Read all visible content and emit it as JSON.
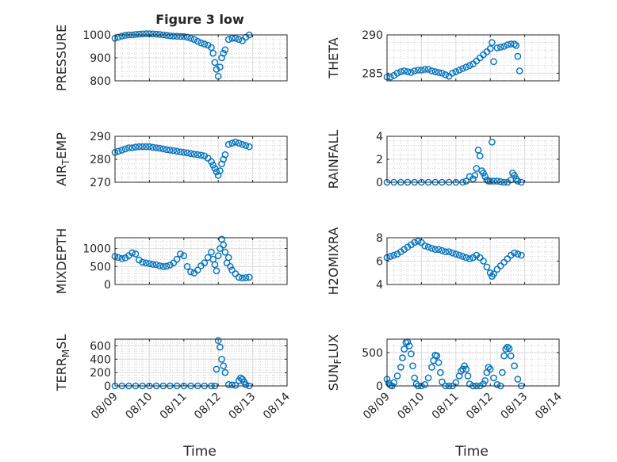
{
  "chart_data": {
    "type": "scatter",
    "title": "Figure 3 low",
    "xlabel": "Time",
    "x_tick_labels": [
      "08/09",
      "08/10",
      "08/11",
      "08/12",
      "08/13",
      "08/14"
    ],
    "x_range_days": [
      9,
      14
    ],
    "marker": "open-circle",
    "color": "#0072BD",
    "grid": "major and minor",
    "panels": [
      {
        "ylabel": "PRESSURE",
        "ylim": [
          800,
          1000
        ],
        "yticks": [
          800,
          900,
          1000
        ],
        "x": [
          9.0,
          9.1,
          9.2,
          9.3,
          9.4,
          9.5,
          9.6,
          9.7,
          9.8,
          9.9,
          10.0,
          10.1,
          10.2,
          10.3,
          10.4,
          10.5,
          10.6,
          10.7,
          10.8,
          10.9,
          11.0,
          11.1,
          11.2,
          11.3,
          11.4,
          11.5,
          11.6,
          11.7,
          11.8,
          11.85,
          11.9,
          11.95,
          12.0,
          12.05,
          12.1,
          12.15,
          12.2,
          12.3,
          12.4,
          12.5,
          12.6,
          12.7,
          12.8,
          12.9
        ],
        "y": [
          985,
          990,
          995,
          998,
          1000,
          1000,
          1002,
          1003,
          1004,
          1005,
          1005,
          1004,
          1003,
          1002,
          1000,
          998,
          996,
          995,
          994,
          993,
          993,
          990,
          985,
          980,
          972,
          965,
          960,
          955,
          945,
          920,
          880,
          850,
          820,
          860,
          900,
          920,
          935,
          980,
          985,
          985,
          980,
          975,
          990,
          1000
        ]
      },
      {
        "ylabel": "THETA",
        "ylim": [
          284,
          290
        ],
        "yticks": [
          285,
          290
        ],
        "x": [
          9.0,
          9.1,
          9.2,
          9.3,
          9.4,
          9.5,
          9.6,
          9.7,
          9.8,
          9.9,
          10.0,
          10.1,
          10.2,
          10.3,
          10.4,
          10.5,
          10.6,
          10.7,
          10.8,
          10.9,
          11.0,
          11.1,
          11.2,
          11.3,
          11.4,
          11.5,
          11.6,
          11.7,
          11.8,
          11.9,
          12.0,
          12.05,
          12.1,
          12.2,
          12.3,
          12.4,
          12.5,
          12.6,
          12.7,
          12.75,
          12.8,
          12.85
        ],
        "y": [
          284.5,
          284.5,
          284.7,
          285.0,
          285.2,
          285.3,
          285.2,
          285.1,
          285.3,
          285.4,
          285.4,
          285.5,
          285.5,
          285.3,
          285.2,
          285.1,
          285.0,
          284.8,
          284.6,
          285.0,
          285.2,
          285.4,
          285.6,
          285.8,
          286.0,
          286.2,
          286.6,
          287.0,
          287.4,
          287.8,
          288.2,
          289.0,
          286.5,
          288.3,
          288.4,
          288.5,
          288.7,
          288.8,
          288.8,
          288.6,
          287.2,
          285.3
        ]
      },
      {
        "ylabel": "AIR_TEMP",
        "ylim": [
          270,
          290
        ],
        "yticks": [
          270,
          280,
          290
        ],
        "x": [
          9.0,
          9.1,
          9.2,
          9.3,
          9.4,
          9.5,
          9.6,
          9.7,
          9.8,
          9.9,
          10.0,
          10.1,
          10.2,
          10.3,
          10.4,
          10.5,
          10.6,
          10.7,
          10.8,
          10.9,
          11.0,
          11.1,
          11.2,
          11.3,
          11.4,
          11.5,
          11.6,
          11.7,
          11.8,
          11.85,
          11.9,
          11.95,
          12.0,
          12.05,
          12.1,
          12.15,
          12.2,
          12.3,
          12.4,
          12.5,
          12.6,
          12.7,
          12.8,
          12.9
        ],
        "y": [
          283,
          283.5,
          284,
          284.5,
          285,
          285,
          285.3,
          285.5,
          285.5,
          285.5,
          285.5,
          285.2,
          285,
          284.8,
          284.5,
          284.2,
          284,
          283.8,
          283.5,
          283.2,
          283,
          282.8,
          282.5,
          282.2,
          282,
          281.8,
          281.5,
          280.5,
          279,
          277.5,
          276,
          274.5,
          273,
          275,
          278,
          280,
          282,
          286.5,
          287,
          287.5,
          287,
          286.5,
          286,
          285.5
        ]
      },
      {
        "ylabel": "RAINFALL",
        "ylim": [
          0,
          4
        ],
        "yticks": [
          0,
          2,
          4
        ],
        "x": [
          9.0,
          9.2,
          9.4,
          9.6,
          9.8,
          10.0,
          10.2,
          10.4,
          10.6,
          10.8,
          11.0,
          11.2,
          11.3,
          11.4,
          11.5,
          11.55,
          11.6,
          11.65,
          11.7,
          11.75,
          11.8,
          11.85,
          11.9,
          11.95,
          12.0,
          12.05,
          12.1,
          12.2,
          12.3,
          12.4,
          12.5,
          12.6,
          12.65,
          12.7,
          12.75,
          12.8,
          12.9
        ],
        "y": [
          0,
          0,
          0,
          0,
          0,
          0,
          0,
          0,
          0,
          0,
          0,
          0,
          0.1,
          0.5,
          0.3,
          0.6,
          1.2,
          2.8,
          2.3,
          1.0,
          0.8,
          0.5,
          0.2,
          0.1,
          0.1,
          3.5,
          0.1,
          0.1,
          0.05,
          0,
          0,
          0.2,
          0.8,
          0.6,
          0.3,
          0.1,
          0
        ]
      },
      {
        "ylabel": "MIXDEPTH",
        "ylim": [
          0,
          1300
        ],
        "yticks": [
          0,
          500,
          1000
        ],
        "x": [
          9.0,
          9.1,
          9.2,
          9.3,
          9.4,
          9.5,
          9.6,
          9.7,
          9.8,
          9.9,
          10.0,
          10.1,
          10.2,
          10.3,
          10.4,
          10.5,
          10.6,
          10.7,
          10.8,
          10.9,
          11.0,
          11.1,
          11.2,
          11.3,
          11.4,
          11.5,
          11.6,
          11.7,
          11.8,
          11.85,
          11.9,
          11.95,
          12.0,
          12.05,
          12.1,
          12.15,
          12.2,
          12.25,
          12.3,
          12.35,
          12.4,
          12.5,
          12.6,
          12.7,
          12.8,
          12.9
        ],
        "y": [
          780,
          750,
          720,
          740,
          800,
          880,
          850,
          680,
          620,
          600,
          580,
          560,
          550,
          520,
          500,
          510,
          540,
          600,
          700,
          850,
          800,
          500,
          350,
          320,
          400,
          520,
          600,
          750,
          900,
          700,
          550,
          380,
          800,
          1000,
          1260,
          1100,
          900,
          600,
          750,
          500,
          400,
          300,
          200,
          180,
          190,
          200
        ]
      },
      {
        "ylabel": "H2OMIXRA",
        "ylim": [
          4,
          8
        ],
        "yticks": [
          4,
          6,
          8
        ],
        "x": [
          9.0,
          9.1,
          9.2,
          9.3,
          9.4,
          9.5,
          9.6,
          9.7,
          9.8,
          9.9,
          10.0,
          10.1,
          10.2,
          10.3,
          10.4,
          10.5,
          10.6,
          10.7,
          10.8,
          10.9,
          11.0,
          11.1,
          11.2,
          11.3,
          11.4,
          11.5,
          11.6,
          11.7,
          11.8,
          11.9,
          12.0,
          12.05,
          12.1,
          12.2,
          12.3,
          12.4,
          12.5,
          12.6,
          12.7,
          12.8,
          12.9
        ],
        "y": [
          6.3,
          6.4,
          6.5,
          6.6,
          6.8,
          7.0,
          7.2,
          7.4,
          7.6,
          7.7,
          7.6,
          7.3,
          7.2,
          7.1,
          7.0,
          7.0,
          6.9,
          6.8,
          6.8,
          6.7,
          6.6,
          6.5,
          6.4,
          6.3,
          6.2,
          6.3,
          6.5,
          6.3,
          6.0,
          5.5,
          5.0,
          4.7,
          4.9,
          5.3,
          5.6,
          5.9,
          6.2,
          6.5,
          6.7,
          6.6,
          6.5
        ]
      },
      {
        "ylabel": "TERR_MSL",
        "ylim": [
          0,
          700
        ],
        "yticks": [
          0,
          200,
          400,
          600
        ],
        "x": [
          9.0,
          9.2,
          9.4,
          9.6,
          9.8,
          10.0,
          10.2,
          10.4,
          10.6,
          10.8,
          11.0,
          11.2,
          11.4,
          11.6,
          11.8,
          11.9,
          11.95,
          12.0,
          12.05,
          12.1,
          12.15,
          12.2,
          12.3,
          12.4,
          12.5,
          12.6,
          12.65,
          12.7,
          12.75,
          12.8,
          12.9
        ],
        "y": [
          0,
          0,
          0,
          0,
          0,
          0,
          0,
          0,
          0,
          0,
          0,
          0,
          0,
          0,
          0,
          0,
          250,
          680,
          580,
          400,
          300,
          200,
          20,
          15,
          10,
          80,
          120,
          100,
          60,
          20,
          0
        ]
      },
      {
        "ylabel": "SUN_FLUX",
        "ylim": [
          0,
          700
        ],
        "yticks": [
          0,
          500
        ],
        "x": [
          9.0,
          9.05,
          9.1,
          9.15,
          9.2,
          9.3,
          9.4,
          9.45,
          9.5,
          9.55,
          9.6,
          9.65,
          9.7,
          9.75,
          9.8,
          9.85,
          9.9,
          10.0,
          10.1,
          10.2,
          10.3,
          10.35,
          10.4,
          10.45,
          10.5,
          10.55,
          10.6,
          10.7,
          10.8,
          10.9,
          11.0,
          11.1,
          11.15,
          11.2,
          11.25,
          11.3,
          11.35,
          11.4,
          11.5,
          11.6,
          11.7,
          11.8,
          11.85,
          11.9,
          11.95,
          12.0,
          12.1,
          12.2,
          12.3,
          12.35,
          12.4,
          12.45,
          12.5,
          12.55,
          12.6,
          12.7,
          12.8,
          12.9
        ],
        "y": [
          100,
          40,
          10,
          0,
          50,
          150,
          280,
          420,
          550,
          650,
          660,
          600,
          480,
          300,
          120,
          30,
          0,
          0,
          20,
          120,
          280,
          380,
          460,
          450,
          350,
          200,
          60,
          0,
          0,
          0,
          50,
          150,
          220,
          250,
          300,
          250,
          150,
          30,
          0,
          0,
          0,
          30,
          80,
          200,
          280,
          250,
          120,
          20,
          0,
          200,
          450,
          550,
          580,
          560,
          450,
          300,
          100,
          0
        ]
      }
    ]
  }
}
